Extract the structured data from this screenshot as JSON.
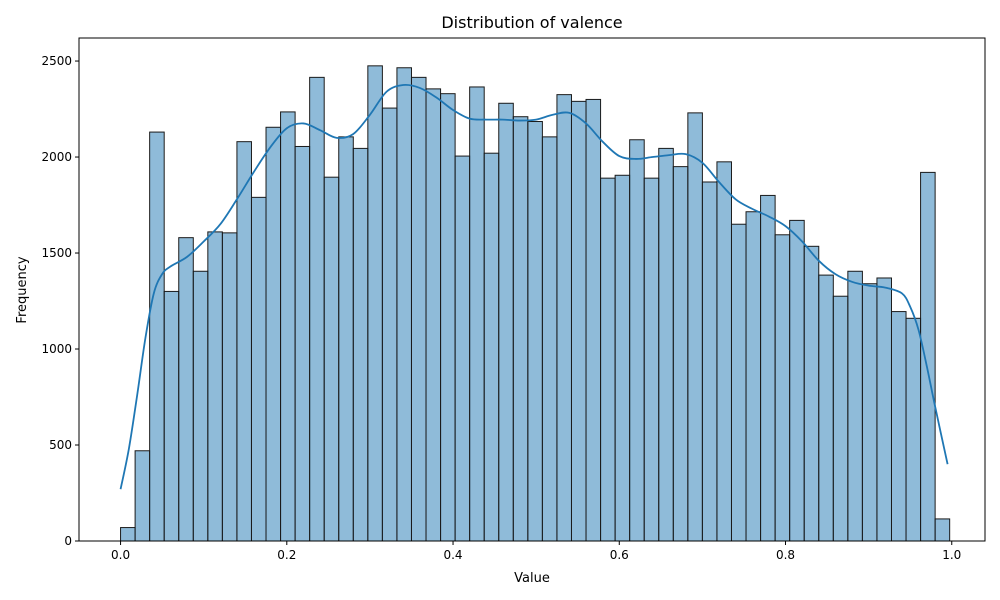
{
  "chart_data": {
    "type": "bar",
    "title": "Distribution of valence",
    "xlabel": "Value",
    "ylabel": "Frequency",
    "xlim": [
      -0.05,
      1.04
    ],
    "ylim": [
      0,
      2620
    ],
    "xticks": [
      0.0,
      0.2,
      0.4,
      0.6,
      0.8,
      1.0
    ],
    "xtick_labels": [
      "0.0",
      "0.2",
      "0.4",
      "0.6",
      "0.8",
      "1.0"
    ],
    "yticks": [
      0,
      500,
      1000,
      1500,
      2000,
      2500
    ],
    "ytick_labels": [
      "0",
      "500",
      "1000",
      "1500",
      "2000",
      "2500"
    ],
    "bin_start": 0.0,
    "bin_width": 0.0175,
    "counts": [
      70,
      470,
      2130,
      1300,
      1580,
      1405,
      1610,
      1605,
      2080,
      1790,
      2155,
      2235,
      2055,
      2415,
      1895,
      2105,
      2045,
      2475,
      2255,
      2465,
      2415,
      2355,
      2330,
      2005,
      2365,
      2020,
      2280,
      2210,
      2185,
      2105,
      2325,
      2290,
      2300,
      1890,
      1905,
      2090,
      1890,
      2045,
      1950,
      2230,
      1870,
      1975,
      1650,
      1715,
      1800,
      1595,
      1670,
      1535,
      1385,
      1275,
      1405,
      1340,
      1370,
      1195,
      1160,
      1920,
      115
    ],
    "kde": {
      "x": [
        0.0,
        0.01,
        0.02,
        0.03,
        0.04,
        0.05,
        0.06,
        0.08,
        0.1,
        0.12,
        0.14,
        0.16,
        0.18,
        0.2,
        0.22,
        0.24,
        0.26,
        0.28,
        0.3,
        0.32,
        0.34,
        0.36,
        0.38,
        0.4,
        0.42,
        0.44,
        0.46,
        0.48,
        0.5,
        0.52,
        0.54,
        0.56,
        0.58,
        0.6,
        0.62,
        0.64,
        0.66,
        0.68,
        0.7,
        0.72,
        0.74,
        0.76,
        0.78,
        0.8,
        0.82,
        0.84,
        0.86,
        0.88,
        0.9,
        0.92,
        0.94,
        0.95,
        0.96,
        0.97,
        0.98,
        0.995
      ],
      "y": [
        270,
        480,
        760,
        1060,
        1290,
        1390,
        1430,
        1480,
        1560,
        1650,
        1780,
        1920,
        2050,
        2150,
        2175,
        2140,
        2100,
        2120,
        2220,
        2340,
        2375,
        2360,
        2310,
        2245,
        2200,
        2195,
        2195,
        2190,
        2195,
        2220,
        2230,
        2175,
        2080,
        2005,
        1990,
        2000,
        2010,
        2015,
        1970,
        1870,
        1780,
        1730,
        1690,
        1640,
        1560,
        1460,
        1390,
        1350,
        1330,
        1320,
        1290,
        1220,
        1100,
        910,
        700,
        400
      ]
    },
    "colors": {
      "bar_fill": "#1f77b4",
      "bar_fill_opacity": 0.5,
      "bar_edge": "#1a1a1a",
      "kde_line": "#1f77b4"
    },
    "grid": false,
    "legend": "none"
  }
}
